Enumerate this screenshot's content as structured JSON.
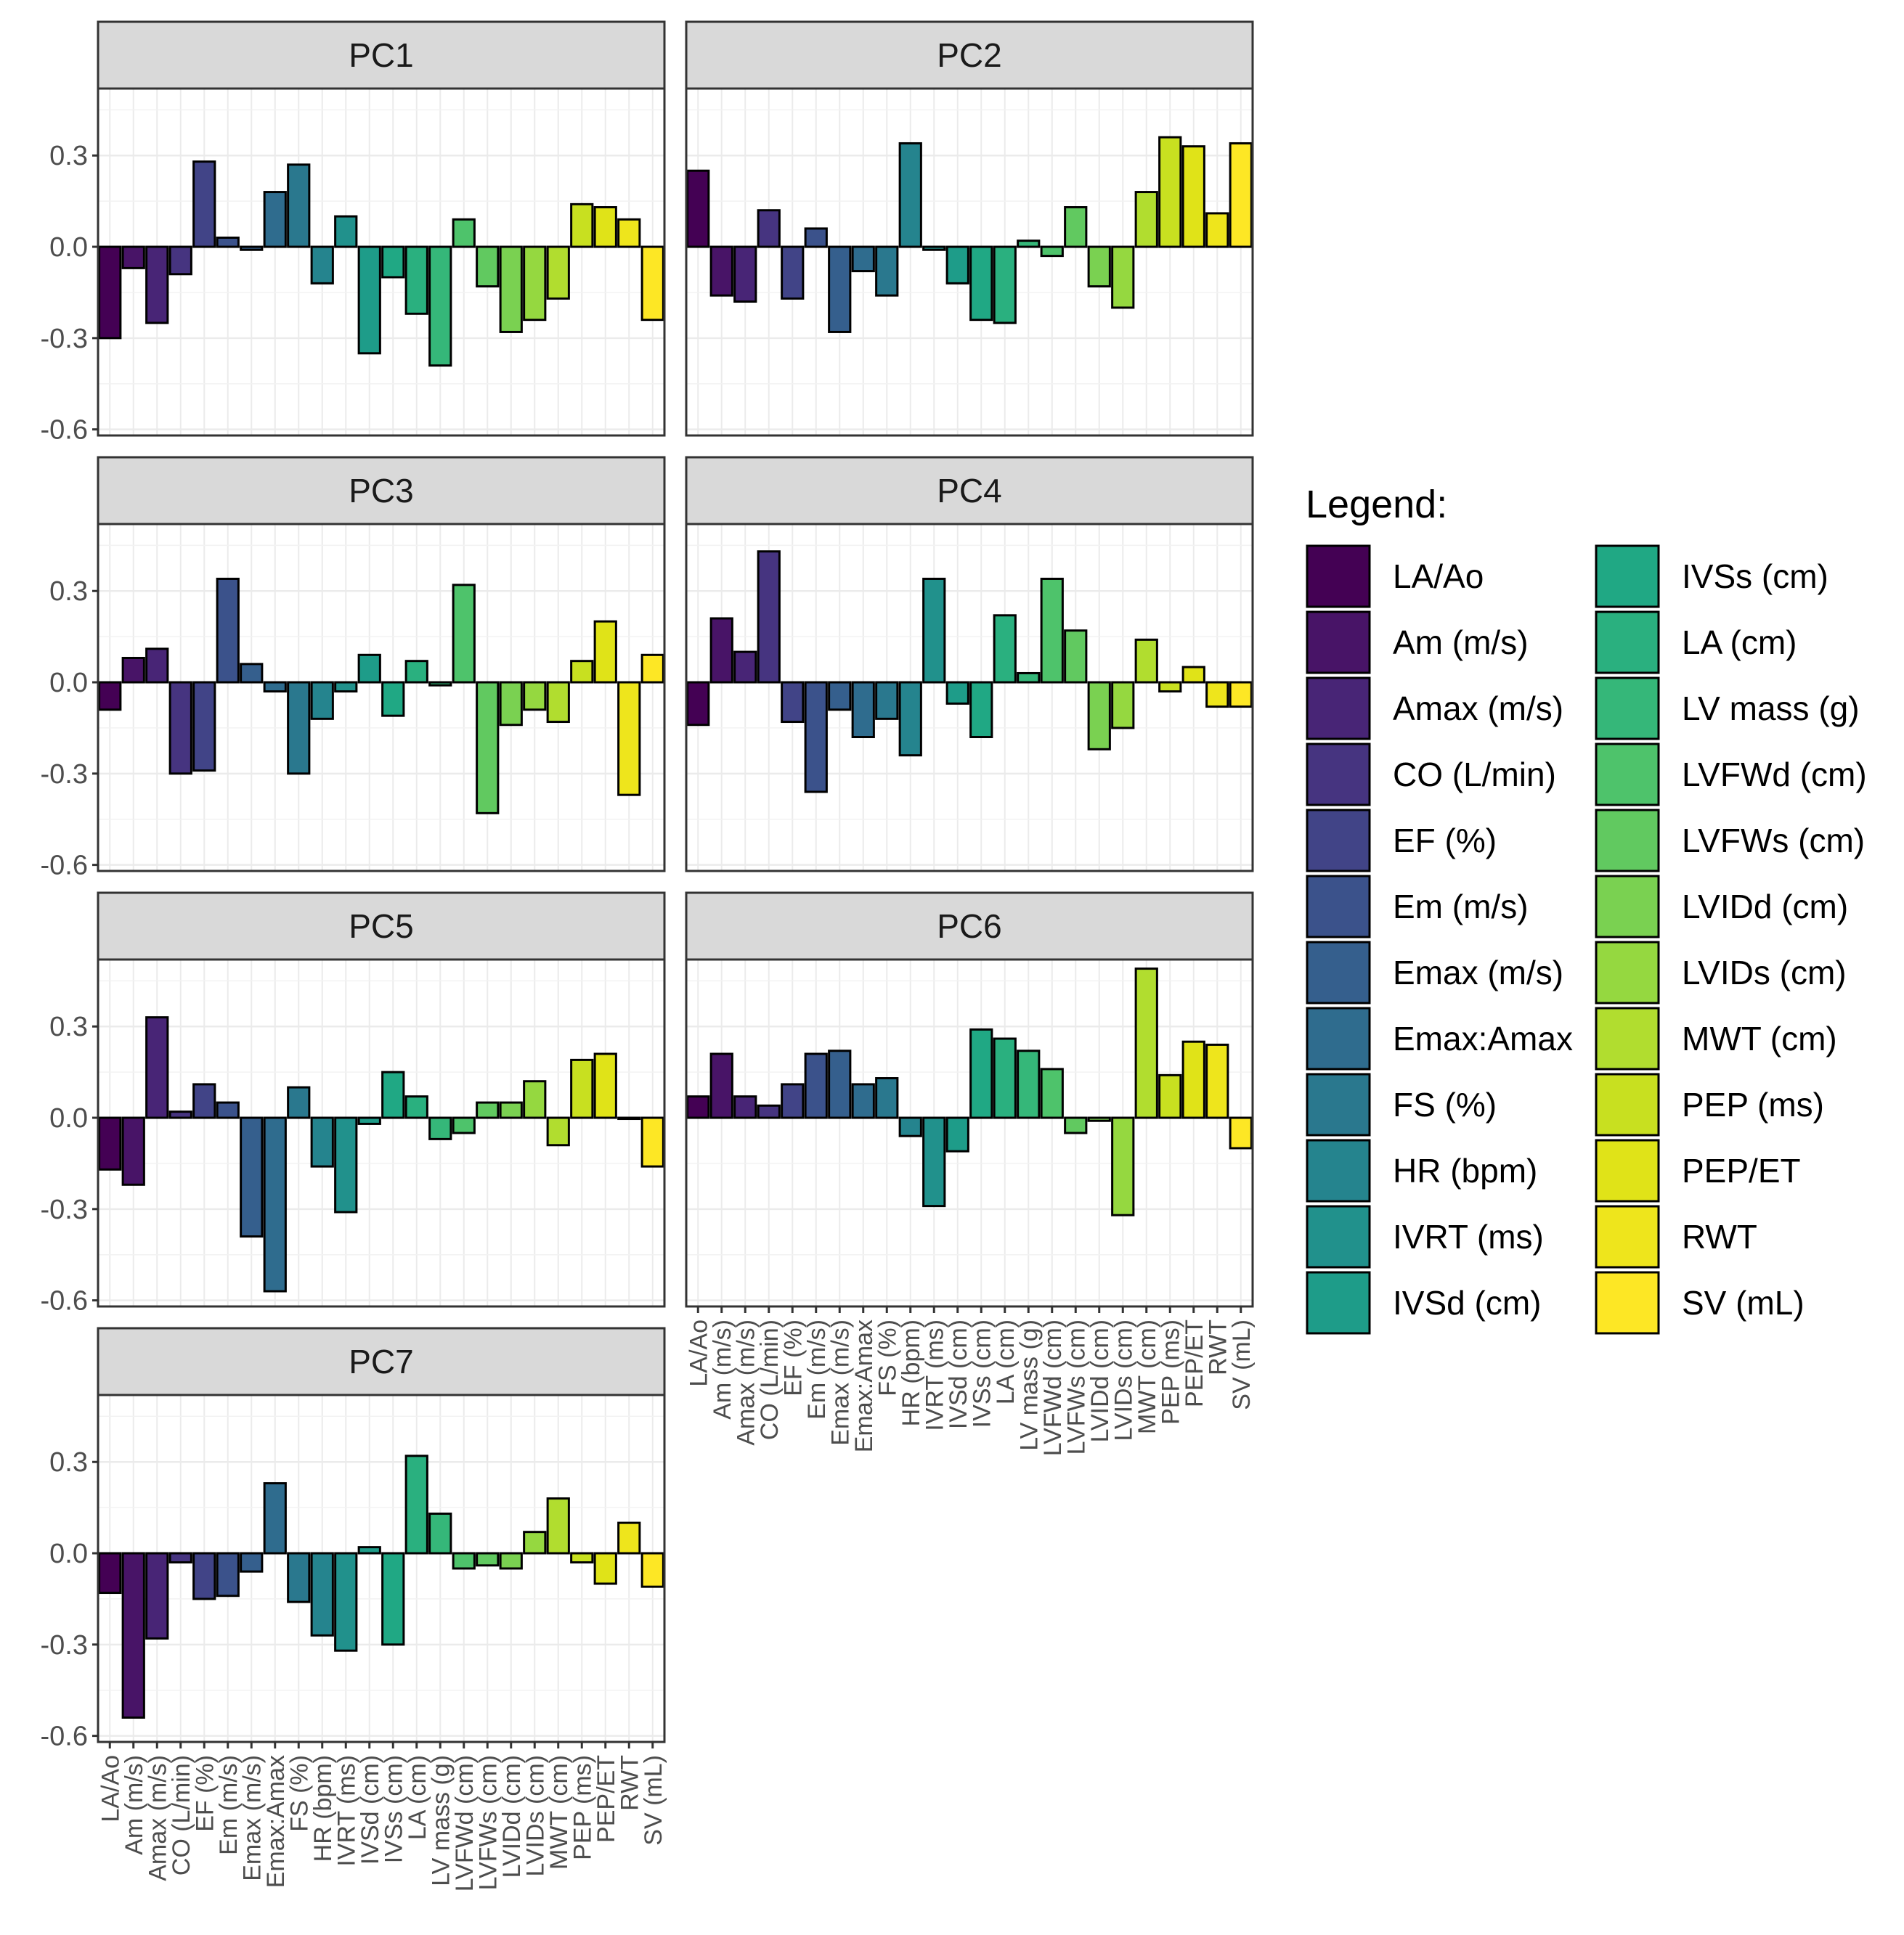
{
  "chart_data": {
    "type": "bar",
    "layout": "facet_wrap",
    "categories": [
      "LA/Ao",
      "Am (m/s)",
      "Amax (m/s)",
      "CO (L/min)",
      "EF (%)",
      "Em (m/s)",
      "Emax (m/s)",
      "Emax:Amax",
      "FS (%)",
      "HR (bpm)",
      "IVRT (ms)",
      "IVSd (cm)",
      "IVSs (cm)",
      "LA (cm)",
      "LV mass (g)",
      "LVFWd (cm)",
      "LVFWs (cm)",
      "LVIDd (cm)",
      "LVIDs (cm)",
      "MWT (cm)",
      "PEP (ms)",
      "PEP/ET",
      "RWT",
      "SV (mL)"
    ],
    "colors": [
      "#440154",
      "#481467",
      "#482576",
      "#463480",
      "#414487",
      "#3b528b",
      "#355f8d",
      "#2f6c8e",
      "#2a788e",
      "#25848e",
      "#21918c",
      "#1e9c89",
      "#20a884",
      "#2ab07f",
      "#35b779",
      "#4ec36b",
      "#61c960",
      "#7ad151",
      "#95d840",
      "#b1dd2f",
      "#c8e020",
      "#e0e318",
      "#eee51c",
      "#fde725"
    ],
    "ylim": [
      -0.62,
      0.52
    ],
    "y_ticks": [
      "0.3",
      "0.0",
      "-0.3",
      "-0.6"
    ],
    "y_tick_values": [
      0.3,
      0.0,
      -0.3,
      -0.6
    ],
    "grid": true,
    "legend_title": "Legend:",
    "legend_position": "right",
    "panels": [
      {
        "title": "PC1",
        "values": [
          -0.3,
          -0.07,
          -0.25,
          -0.09,
          0.28,
          0.03,
          -0.01,
          0.18,
          0.27,
          -0.12,
          0.1,
          -0.35,
          -0.1,
          -0.22,
          -0.39,
          0.09,
          -0.13,
          -0.28,
          -0.24,
          -0.17,
          0.14,
          0.13,
          0.09,
          -0.24
        ]
      },
      {
        "title": "PC2",
        "values": [
          0.25,
          -0.16,
          -0.18,
          0.12,
          -0.17,
          0.06,
          -0.28,
          -0.08,
          -0.16,
          0.34,
          -0.01,
          -0.12,
          -0.24,
          -0.25,
          0.02,
          -0.03,
          0.13,
          -0.13,
          -0.2,
          0.18,
          0.36,
          0.33,
          0.11,
          0.34
        ]
      },
      {
        "title": "PC3",
        "values": [
          -0.09,
          0.08,
          0.11,
          -0.3,
          -0.29,
          0.34,
          0.06,
          -0.03,
          -0.3,
          -0.12,
          -0.03,
          0.09,
          -0.11,
          0.07,
          -0.01,
          0.32,
          -0.43,
          -0.14,
          -0.09,
          -0.13,
          0.07,
          0.2,
          -0.37,
          0.09
        ]
      },
      {
        "title": "PC4",
        "values": [
          -0.14,
          0.21,
          0.1,
          0.43,
          -0.13,
          -0.36,
          -0.09,
          -0.18,
          -0.12,
          -0.24,
          0.34,
          -0.07,
          -0.18,
          0.22,
          0.03,
          0.34,
          0.17,
          -0.22,
          -0.15,
          0.14,
          -0.03,
          0.05,
          -0.08,
          -0.08
        ]
      },
      {
        "title": "PC5",
        "values": [
          -0.17,
          -0.22,
          0.33,
          0.02,
          0.11,
          0.05,
          -0.39,
          -0.57,
          0.1,
          -0.16,
          -0.31,
          -0.02,
          0.15,
          0.07,
          -0.07,
          -0.05,
          0.05,
          0.05,
          0.12,
          -0.09,
          0.19,
          0.21,
          0.0,
          -0.16
        ]
      },
      {
        "title": "PC6",
        "values": [
          0.07,
          0.21,
          0.07,
          0.04,
          0.11,
          0.21,
          0.22,
          0.11,
          0.13,
          -0.06,
          -0.29,
          -0.11,
          0.29,
          0.26,
          0.22,
          0.16,
          -0.05,
          -0.01,
          -0.32,
          0.49,
          0.14,
          0.25,
          0.24,
          -0.1
        ]
      },
      {
        "title": "PC7",
        "values": [
          -0.13,
          -0.54,
          -0.28,
          -0.03,
          -0.15,
          -0.14,
          -0.06,
          0.23,
          -0.16,
          -0.27,
          -0.32,
          0.02,
          -0.3,
          0.32,
          0.13,
          -0.05,
          -0.04,
          -0.05,
          0.07,
          0.18,
          -0.03,
          -0.1,
          0.1,
          -0.11
        ]
      }
    ]
  }
}
